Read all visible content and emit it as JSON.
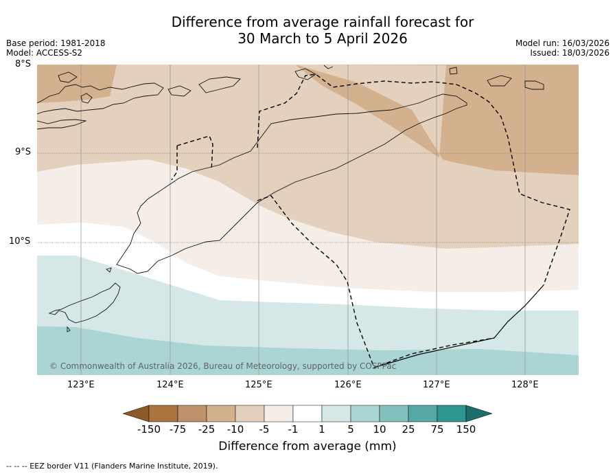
{
  "title": {
    "line1": "Difference from average rainfall forecast for",
    "line2": "30 March to 5 April 2026"
  },
  "meta_left": {
    "base_period": "Base period: 1981-2018",
    "model": "Model: ACCESS-S2"
  },
  "meta_right": {
    "model_run": "Model run: 16/03/2026",
    "issued": "Issued: 18/03/2026"
  },
  "latitude_labels": [
    "8°S",
    "9°S",
    "10°S"
  ],
  "longitude_labels": [
    "123°E",
    "124°E",
    "125°E",
    "126°E",
    "127°E",
    "128°E"
  ],
  "copyright": "© Commonwealth of Australia 2026, Bureau of Meteorology, supported by COSPPac",
  "colorbar": {
    "ticks": [
      "-150",
      "-75",
      "-25",
      "-10",
      "-5",
      "-1",
      "1",
      "5",
      "10",
      "25",
      "75",
      "150"
    ],
    "colors": [
      "#8c5a28",
      "#a97440",
      "#be926a",
      "#d3b08e",
      "#e3d0bd",
      "#f4ede8",
      "#ffffff",
      "#d5e8e7",
      "#abd5d5",
      "#84c0be",
      "#56a7a5",
      "#2e9590",
      "#1a6f6b"
    ],
    "label": "Difference from average (mm)"
  },
  "footer": "--  --  -- EEZ border V11 (Flanders Marine Institute, 2019)."
}
